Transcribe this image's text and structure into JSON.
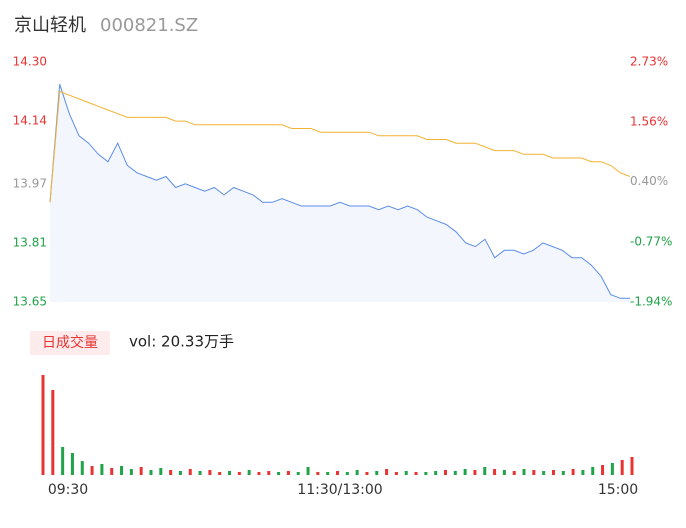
{
  "header": {
    "title": "京山轻机",
    "code": "000821.SZ"
  },
  "chart_data": [
    {
      "type": "line",
      "xlim": [
        0,
        240
      ],
      "xticks": [
        {
          "value": 0,
          "label": "09:30"
        },
        {
          "value": 120,
          "label": "11:30/13:00"
        },
        {
          "value": 240,
          "label": "15:00"
        }
      ],
      "ylim": [
        13.65,
        14.3
      ],
      "yticks": [
        {
          "value": 14.3,
          "label": "14.30"
        },
        {
          "value": 14.14,
          "label": "14.14"
        },
        {
          "value": 13.97,
          "label": "13.97"
        },
        {
          "value": 13.81,
          "label": "13.81"
        },
        {
          "value": 13.65,
          "label": "13.65"
        }
      ],
      "y2lim": [
        -1.94,
        2.73
      ],
      "y2ticks": [
        {
          "value": 2.73,
          "label": "2.73%"
        },
        {
          "value": 1.56,
          "label": "1.56%"
        },
        {
          "value": 0.4,
          "label": "0.40%"
        },
        {
          "value": -0.77,
          "label": "-0.77%"
        },
        {
          "value": -1.94,
          "label": "-1.94%"
        }
      ],
      "series": [
        {
          "color": "#5b8ee6",
          "values": [
            13.92,
            14.24,
            14.16,
            14.1,
            14.08,
            14.05,
            14.03,
            14.08,
            14.02,
            14.0,
            13.99,
            13.98,
            13.99,
            13.96,
            13.97,
            13.96,
            13.95,
            13.96,
            13.94,
            13.96,
            13.95,
            13.94,
            13.92,
            13.92,
            13.93,
            13.92,
            13.91,
            13.91,
            13.91,
            13.91,
            13.92,
            13.91,
            13.91,
            13.91,
            13.9,
            13.91,
            13.9,
            13.91,
            13.9,
            13.88,
            13.87,
            13.86,
            13.84,
            13.81,
            13.8,
            13.82,
            13.77,
            13.79,
            13.79,
            13.78,
            13.79,
            13.81,
            13.8,
            13.79,
            13.77,
            13.77,
            13.75,
            13.72,
            13.67,
            13.66,
            13.66
          ]
        },
        {
          "color": "#f2b233",
          "values": [
            13.92,
            14.22,
            14.21,
            14.2,
            14.19,
            14.18,
            14.17,
            14.16,
            14.15,
            14.15,
            14.15,
            14.15,
            14.15,
            14.14,
            14.14,
            14.13,
            14.13,
            14.13,
            14.13,
            14.13,
            14.13,
            14.13,
            14.13,
            14.13,
            14.13,
            14.12,
            14.12,
            14.12,
            14.11,
            14.11,
            14.11,
            14.11,
            14.11,
            14.11,
            14.1,
            14.1,
            14.1,
            14.1,
            14.1,
            14.09,
            14.09,
            14.09,
            14.08,
            14.08,
            14.08,
            14.07,
            14.06,
            14.06,
            14.06,
            14.05,
            14.05,
            14.05,
            14.04,
            14.04,
            14.04,
            14.04,
            14.03,
            14.03,
            14.02,
            14.0,
            13.99
          ]
        }
      ]
    },
    {
      "type": "bar",
      "label": "日成交量",
      "summary": "vol: 20.33万手",
      "ylim": [
        0,
        110
      ],
      "values": [
        100,
        85,
        28,
        22,
        14,
        9,
        11,
        7,
        9,
        6,
        8,
        5,
        7,
        5,
        4,
        6,
        4,
        5,
        3,
        4,
        3,
        5,
        3,
        4,
        3,
        4,
        3,
        8,
        3,
        3,
        4,
        3,
        5,
        3,
        4,
        6,
        3,
        4,
        3,
        3,
        4,
        5,
        4,
        6,
        5,
        8,
        6,
        5,
        4,
        6,
        5,
        4,
        5,
        4,
        6,
        5,
        8,
        10,
        12,
        15,
        18
      ],
      "colors": [
        "#e83333",
        "#e83333",
        "#21a34a",
        "#21a34a",
        "#21a34a",
        "#e83333",
        "#21a34a",
        "#e83333",
        "#21a34a",
        "#21a34a",
        "#e83333",
        "#21a34a",
        "#21a34a",
        "#e83333",
        "#21a34a",
        "#e83333",
        "#21a34a",
        "#e83333",
        "#e83333",
        "#21a34a",
        "#e83333",
        "#21a34a",
        "#e83333",
        "#e83333",
        "#21a34a",
        "#e83333",
        "#21a34a",
        "#21a34a",
        "#e83333",
        "#21a34a",
        "#e83333",
        "#21a34a",
        "#21a34a",
        "#e83333",
        "#21a34a",
        "#e83333",
        "#e83333",
        "#21a34a",
        "#e83333",
        "#21a34a",
        "#21a34a",
        "#e83333",
        "#21a34a",
        "#21a34a",
        "#e83333",
        "#21a34a",
        "#e83333",
        "#21a34a",
        "#e83333",
        "#21a34a",
        "#e83333",
        "#21a34a",
        "#e83333",
        "#21a34a",
        "#e83333",
        "#21a34a",
        "#21a34a",
        "#e83333",
        "#21a34a",
        "#e83333",
        "#e83333"
      ]
    }
  ]
}
